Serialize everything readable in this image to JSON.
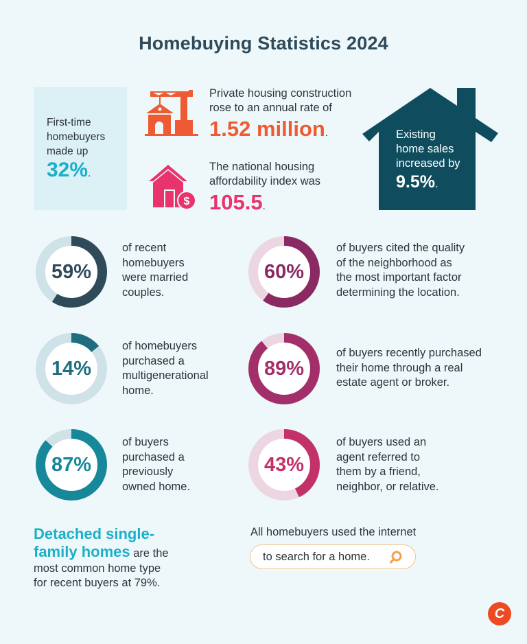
{
  "title": "Homebuying Statistics 2024",
  "colors": {
    "background": "#eef8fa",
    "title": "#2f4b5a",
    "teal_bright": "#1ab0c8",
    "orange": "#ee5a33",
    "pink": "#e8336c",
    "house_dark": "#0f4d5e",
    "search_border": "#f5c28a",
    "search_icon": "#f5a04a",
    "logo": "#ee4a22"
  },
  "first_time_buyers": {
    "lines": [
      "First-time",
      "homebuyers",
      "made up"
    ],
    "value": "32%",
    "suffix": "."
  },
  "construction": {
    "icon": "crane-house-icon",
    "lines": [
      "Private housing construction",
      "rose to an annual rate of"
    ],
    "value": "1.52 million",
    "suffix": "."
  },
  "affordability": {
    "icon": "house-dollar-icon",
    "lines": [
      "The national housing",
      "affordability index was"
    ],
    "value": "105.5",
    "suffix": "."
  },
  "existing_sales": {
    "icon": "house-shape",
    "lines": [
      "Existing",
      "home sales",
      "increased by"
    ],
    "value": "9.5%",
    "suffix": "."
  },
  "stats": [
    {
      "value": "59%",
      "pct": 59,
      "color": "#2f4b5a",
      "track": "#cfe2e8",
      "lines": [
        "of recent",
        "homebuyers",
        "were married",
        "couples."
      ]
    },
    {
      "value": "60%",
      "pct": 60,
      "color": "#8a2a63",
      "track": "#ecd6e2",
      "lines": [
        "of buyers cited the quality",
        "of the neighborhood as",
        "the most important factor",
        "determining the location."
      ]
    },
    {
      "value": "14%",
      "pct": 14,
      "color": "#1e6e80",
      "track": "#cfe2e8",
      "lines": [
        "of homebuyers",
        "purchased a",
        "multigenerational",
        "home."
      ]
    },
    {
      "value": "89%",
      "pct": 89,
      "color": "#a22f6a",
      "track": "#ecd6e2",
      "lines": [
        "of buyers recently purchased",
        "their home through a real",
        "estate agent or broker."
      ]
    },
    {
      "value": "87%",
      "pct": 87,
      "color": "#17879a",
      "track": "#cfe2e8",
      "lines": [
        "of buyers",
        "purchased a",
        "previously",
        "owned home."
      ]
    },
    {
      "value": "43%",
      "pct": 43,
      "color": "#c23268",
      "track": "#ecd6e2",
      "lines": [
        "of buyers used an",
        "agent referred to",
        "them by a friend,",
        "neighbor, or relative."
      ]
    }
  ],
  "detached": {
    "highlight": [
      "Detached single-",
      "family homes"
    ],
    "rest": [
      " are the",
      "most common home type",
      "for recent buyers at 79%."
    ]
  },
  "internet": {
    "line": "All homebuyers used the internet",
    "pill": "to search for a home.",
    "icon": "search-icon"
  },
  "logo": {
    "letter": "C"
  },
  "chart_data": {
    "type": "pie",
    "title": "Homebuying Statistics 2024",
    "charts": [
      {
        "label": "Recent homebuyers who were married couples",
        "value": 59
      },
      {
        "label": "Buyers citing neighborhood quality as most important location factor",
        "value": 60
      },
      {
        "label": "Homebuyers who purchased a multigenerational home",
        "value": 14
      },
      {
        "label": "Buyers who purchased through a real estate agent or broker",
        "value": 89
      },
      {
        "label": "Buyers who purchased a previously owned home",
        "value": 87
      },
      {
        "label": "Buyers who used an agent referred by a friend, neighbor, or relative",
        "value": 43
      }
    ],
    "callouts": [
      {
        "label": "First-time homebuyers share",
        "value": "32%"
      },
      {
        "label": "Private housing construction annual rate",
        "value": "1.52 million"
      },
      {
        "label": "National housing affordability index",
        "value": "105.5"
      },
      {
        "label": "Existing home sales increase",
        "value": "9.5%"
      },
      {
        "label": "Detached single-family homes share for recent buyers",
        "value": "79%"
      }
    ]
  }
}
